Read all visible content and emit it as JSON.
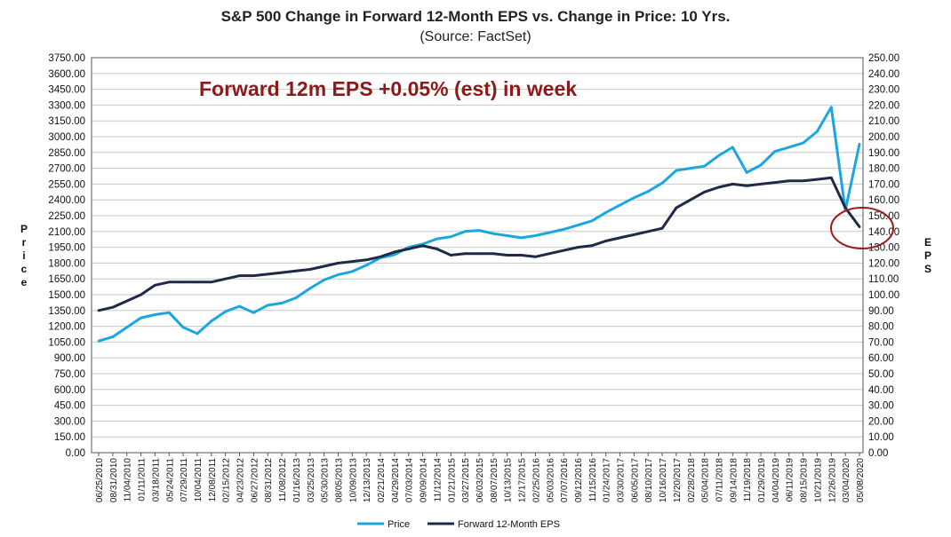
{
  "chart_data": {
    "type": "line",
    "title": "S&P 500 Change in Forward 12-Month EPS vs. Change in Price: 10 Yrs.",
    "subtitle": "(Source: FactSet)",
    "annotation": "Forward 12m EPS +0.05% (est) in week",
    "ylabel_left": "Price",
    "ylabel_right": "EPS",
    "ylim_left": [
      0,
      3750
    ],
    "ylim_right": [
      0,
      250
    ],
    "y_ticks_left": [
      "0.00",
      "150.00",
      "300.00",
      "450.00",
      "600.00",
      "750.00",
      "900.00",
      "1050.00",
      "1200.00",
      "1350.00",
      "1500.00",
      "1650.00",
      "1800.00",
      "1950.00",
      "2100.00",
      "2250.00",
      "2400.00",
      "2550.00",
      "2700.00",
      "2850.00",
      "3000.00",
      "3150.00",
      "3300.00",
      "3450.00",
      "3600.00",
      "3750.00"
    ],
    "y_ticks_right": [
      "0.00",
      "10.00",
      "20.00",
      "30.00",
      "40.00",
      "50.00",
      "60.00",
      "70.00",
      "80.00",
      "90.00",
      "100.00",
      "110.00",
      "120.00",
      "130.00",
      "140.00",
      "150.00",
      "160.00",
      "170.00",
      "180.00",
      "190.00",
      "200.00",
      "210.00",
      "220.00",
      "230.00",
      "240.00",
      "250.00"
    ],
    "x_ticks": [
      "06/25/2010",
      "08/31/2010",
      "11/04/2010",
      "01/11/2011",
      "03/18/2011",
      "05/24/2011",
      "07/29/2011",
      "10/04/2011",
      "12/08/2011",
      "02/15/2012",
      "04/23/2012",
      "06/27/2012",
      "08/31/2012",
      "11/08/2012",
      "01/16/2013",
      "03/25/2013",
      "05/30/2013",
      "08/05/2013",
      "10/09/2013",
      "12/13/2013",
      "02/21/2014",
      "04/29/2014",
      "07/03/2014",
      "09/09/2014",
      "11/12/2014",
      "01/21/2015",
      "03/27/2015",
      "06/03/2015",
      "08/07/2015",
      "10/13/2015",
      "12/17/2015",
      "02/25/2016",
      "05/03/2016",
      "07/07/2016",
      "09/12/2016",
      "11/15/2016",
      "01/24/2017",
      "03/30/2017",
      "06/05/2017",
      "08/10/2017",
      "10/16/2017",
      "12/20/2017",
      "02/28/2018",
      "05/04/2018",
      "07/11/2018",
      "09/14/2018",
      "11/19/2018",
      "01/29/2019",
      "04/04/2019",
      "06/11/2019",
      "08/15/2019",
      "10/21/2019",
      "12/26/2019",
      "03/04/2020",
      "05/08/2020"
    ],
    "series": [
      {
        "name": "Price",
        "axis": "left",
        "color": "#1AA7E0",
        "values": [
          1060,
          1100,
          1190,
          1280,
          1310,
          1330,
          1190,
          1130,
          1250,
          1340,
          1390,
          1330,
          1400,
          1420,
          1470,
          1560,
          1640,
          1690,
          1720,
          1780,
          1850,
          1880,
          1950,
          1980,
          2030,
          2050,
          2100,
          2110,
          2080,
          2060,
          2040,
          2060,
          2090,
          2120,
          2160,
          2200,
          2280,
          2350,
          2420,
          2480,
          2560,
          2680,
          2700,
          2720,
          2820,
          2900,
          2660,
          2730,
          2860,
          2900,
          2940,
          3050,
          3280,
          2300,
          2930
        ]
      },
      {
        "name": "Forward 12-Month EPS",
        "axis": "right",
        "color": "#1F2A48",
        "values": [
          90,
          92,
          96,
          100,
          106,
          108,
          108,
          108,
          108,
          110,
          112,
          112,
          113,
          114,
          115,
          116,
          118,
          120,
          121,
          122,
          124,
          127,
          129,
          131,
          129,
          125,
          126,
          126,
          126,
          125,
          125,
          124,
          126,
          128,
          130,
          131,
          134,
          136,
          138,
          140,
          142,
          155,
          160,
          165,
          168,
          170,
          169,
          170,
          171,
          172,
          172,
          173,
          174,
          155,
          143
        ]
      }
    ],
    "legend": [
      "Price",
      "Forward 12-Month EPS"
    ],
    "legend_position": "bottom",
    "grid": true
  }
}
